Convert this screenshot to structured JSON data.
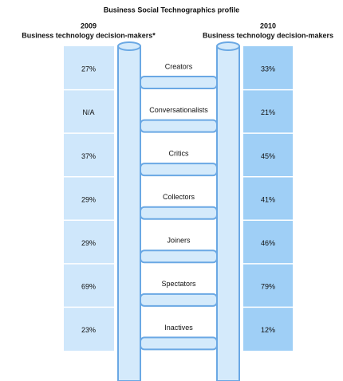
{
  "title": "Business Social Technographics profile",
  "columns": [
    {
      "year": "2009",
      "label": "Business technology decision-makers*"
    },
    {
      "year": "2010",
      "label": "Business technology decision-makers"
    }
  ],
  "rungs": [
    {
      "label": "Creators",
      "v2009": "27%",
      "v2010": "33%"
    },
    {
      "label": "Conversationalists",
      "v2009": "N/A",
      "v2010": "21%"
    },
    {
      "label": "Critics",
      "v2009": "37%",
      "v2010": "45%"
    },
    {
      "label": "Collectors",
      "v2009": "29%",
      "v2010": "41%"
    },
    {
      "label": "Joiners",
      "v2009": "29%",
      "v2010": "46%"
    },
    {
      "label": "Spectators",
      "v2009": "69%",
      "v2010": "79%"
    },
    {
      "label": "Inactives",
      "v2009": "23%",
      "v2010": "12%"
    }
  ]
}
